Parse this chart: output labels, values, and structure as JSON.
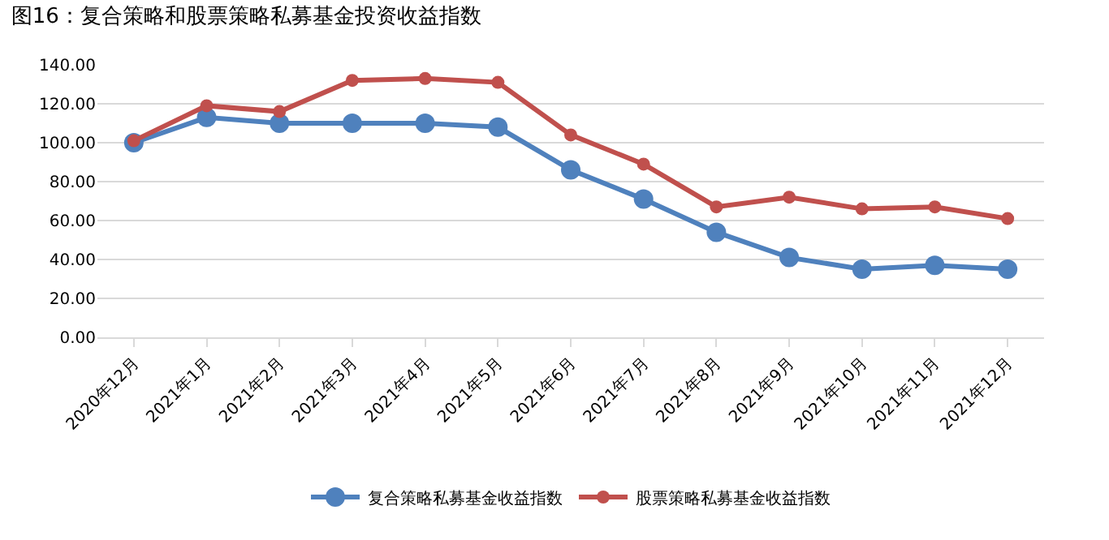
{
  "chart_data": {
    "type": "line",
    "title": "图16：复合策略和股票策略私募基金投资收益指数",
    "categories": [
      "2020年12月",
      "2021年1月",
      "2021年2月",
      "2021年3月",
      "2021年4月",
      "2021年5月",
      "2021年6月",
      "2021年7月",
      "2021年8月",
      "2021年9月",
      "2021年10月",
      "2021年11月",
      "2021年12月"
    ],
    "series": [
      {
        "name": "复合策略私募基金收益指数",
        "color": "#4f81bd",
        "values": [
          100,
          113,
          110,
          110,
          110,
          108,
          86,
          71,
          54,
          41,
          35,
          37,
          35
        ]
      },
      {
        "name": "股票策略私募基金收益指数",
        "color": "#c0504d",
        "values": [
          101,
          119,
          116,
          132,
          133,
          131,
          104,
          89,
          67,
          72,
          66,
          67,
          61
        ]
      }
    ],
    "ylim": [
      0,
      140
    ],
    "yticks": [
      {
        "value": 0,
        "label": "0.00"
      },
      {
        "value": 20,
        "label": "20.00"
      },
      {
        "value": 40,
        "label": "40.00"
      },
      {
        "value": 60,
        "label": "60.00"
      },
      {
        "value": 80,
        "label": "80.00"
      },
      {
        "value": 100,
        "label": "100.00"
      },
      {
        "value": 120,
        "label": "120.00"
      },
      {
        "value": 140,
        "label": "140.00"
      }
    ],
    "grid": "y",
    "legend": "bottom",
    "marker": "circle",
    "line_style": "solid"
  }
}
